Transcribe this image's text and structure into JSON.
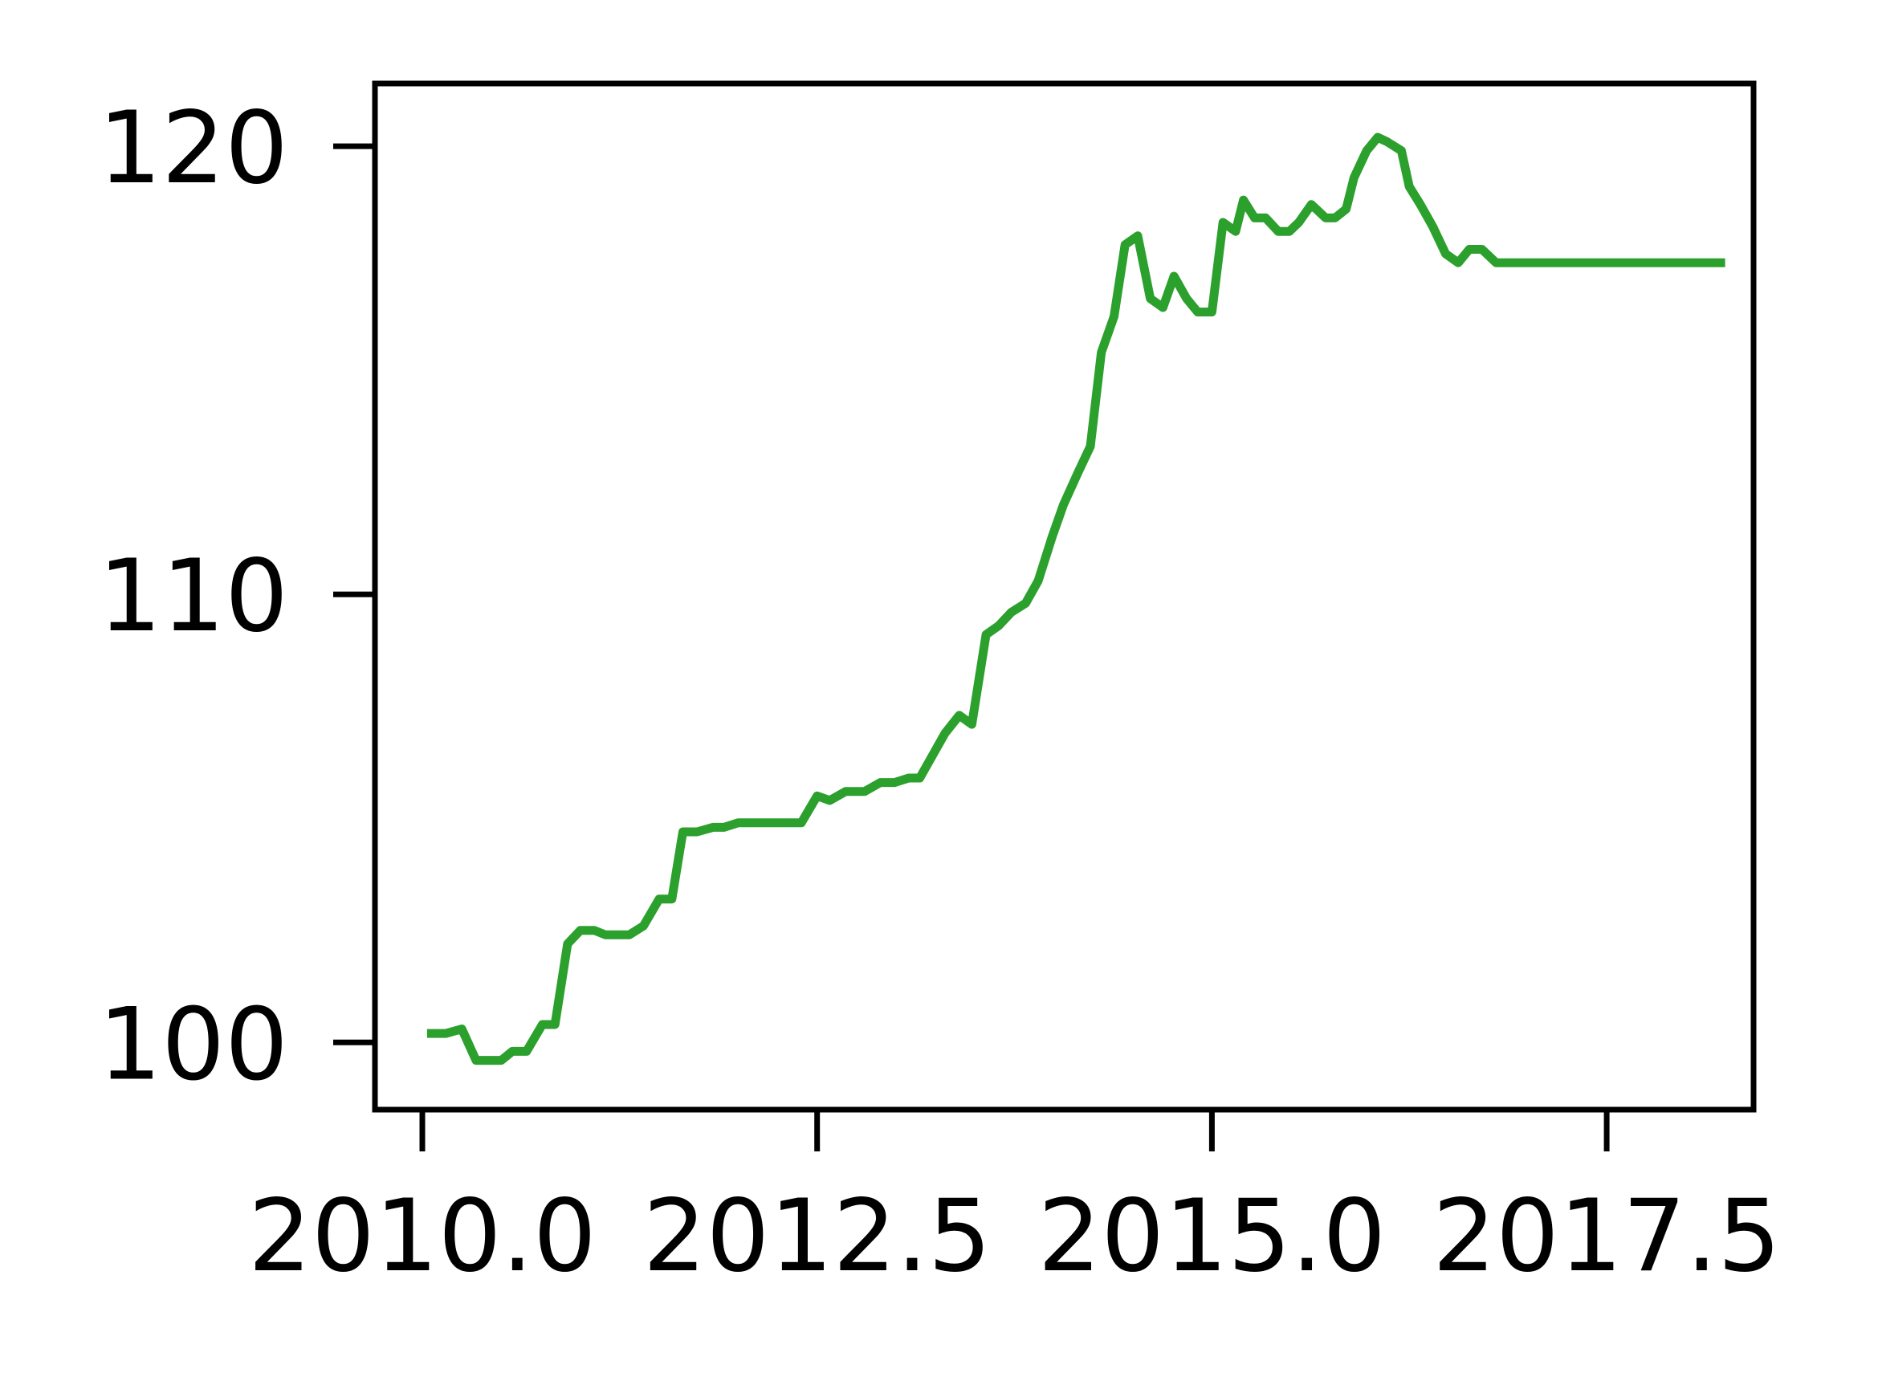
{
  "chart_data": {
    "type": "line",
    "title": "",
    "xlabel": "",
    "ylabel": "",
    "xlim": [
      2009.7,
      2018.43
    ],
    "ylim": [
      98.5,
      121.4
    ],
    "x_ticks": [
      {
        "value": 2010.0,
        "label": "2010.0"
      },
      {
        "value": 2012.5,
        "label": "2012.5"
      },
      {
        "value": 2015.0,
        "label": "2015.0"
      },
      {
        "value": 2017.5,
        "label": "2017.5"
      }
    ],
    "y_ticks": [
      {
        "value": 100,
        "label": "100"
      },
      {
        "value": 110,
        "label": "110"
      },
      {
        "value": 120,
        "label": "120"
      }
    ],
    "grid": false,
    "legend": "none",
    "series": [
      {
        "color": "#2ca02c",
        "x": [
          2010.03,
          2010.15,
          2010.25,
          2010.34,
          2010.43,
          2010.5,
          2010.57,
          2010.66,
          2010.76,
          2010.84,
          2010.92,
          2011.0,
          2011.09,
          2011.16,
          2011.24,
          2011.31,
          2011.4,
          2011.5,
          2011.58,
          2011.65,
          2011.74,
          2011.84,
          2011.91,
          2012.0,
          2012.08,
          2012.15,
          2012.25,
          2012.4,
          2012.5,
          2012.58,
          2012.68,
          2012.8,
          2012.9,
          2012.99,
          2013.08,
          2013.15,
          2013.23,
          2013.31,
          2013.4,
          2013.48,
          2013.57,
          2013.65,
          2013.73,
          2013.82,
          2013.9,
          2013.99,
          2014.06,
          2014.15,
          2014.23,
          2014.3,
          2014.38,
          2014.45,
          2014.53,
          2014.61,
          2014.69,
          2014.76,
          2014.84,
          2014.91,
          2015.0,
          2015.07,
          2015.15,
          2015.2,
          2015.27,
          2015.34,
          2015.42,
          2015.49,
          2015.55,
          2015.63,
          2015.72,
          2015.78,
          2015.85,
          2015.9,
          2015.98,
          2016.05,
          2016.11,
          2016.2,
          2016.25,
          2016.32,
          2016.4,
          2016.48,
          2016.56,
          2016.63,
          2016.71,
          2016.8,
          2016.9,
          2016.97,
          2017.03,
          2017.11,
          2017.18,
          2017.23,
          2017.3,
          2017.38,
          2017.46,
          2017.57,
          2017.65,
          2017.71,
          2017.8,
          2017.86,
          2017.94,
          2018.01,
          2018.08,
          2018.17,
          2018.25
        ],
        "values": [
          100.2,
          100.2,
          100.3,
          99.6,
          99.6,
          99.6,
          99.8,
          99.8,
          100.4,
          100.4,
          102.2,
          102.5,
          102.5,
          102.4,
          102.4,
          102.4,
          102.6,
          103.2,
          103.2,
          104.7,
          104.7,
          104.8,
          104.8,
          104.9,
          104.9,
          104.9,
          104.9,
          104.9,
          105.5,
          105.4,
          105.6,
          105.6,
          105.8,
          105.8,
          105.9,
          105.9,
          106.4,
          106.9,
          107.3,
          107.1,
          109.1,
          109.3,
          109.6,
          109.8,
          110.3,
          111.3,
          112.0,
          112.7,
          113.3,
          115.4,
          116.2,
          117.8,
          118.0,
          116.6,
          116.4,
          117.1,
          116.6,
          116.3,
          116.3,
          118.3,
          118.1,
          118.8,
          118.4,
          118.4,
          118.1,
          118.1,
          118.3,
          118.7,
          118.4,
          118.4,
          118.6,
          119.3,
          119.9,
          120.2,
          120.1,
          119.9,
          119.1,
          118.7,
          118.2,
          117.6,
          117.4,
          117.7,
          117.7,
          117.4,
          117.4,
          117.4,
          117.4,
          117.4,
          117.4,
          117.4,
          117.4,
          117.4,
          117.4,
          117.4,
          117.4,
          117.4,
          117.4,
          117.4,
          117.4,
          117.4,
          117.4,
          117.4,
          117.4
        ]
      }
    ]
  }
}
